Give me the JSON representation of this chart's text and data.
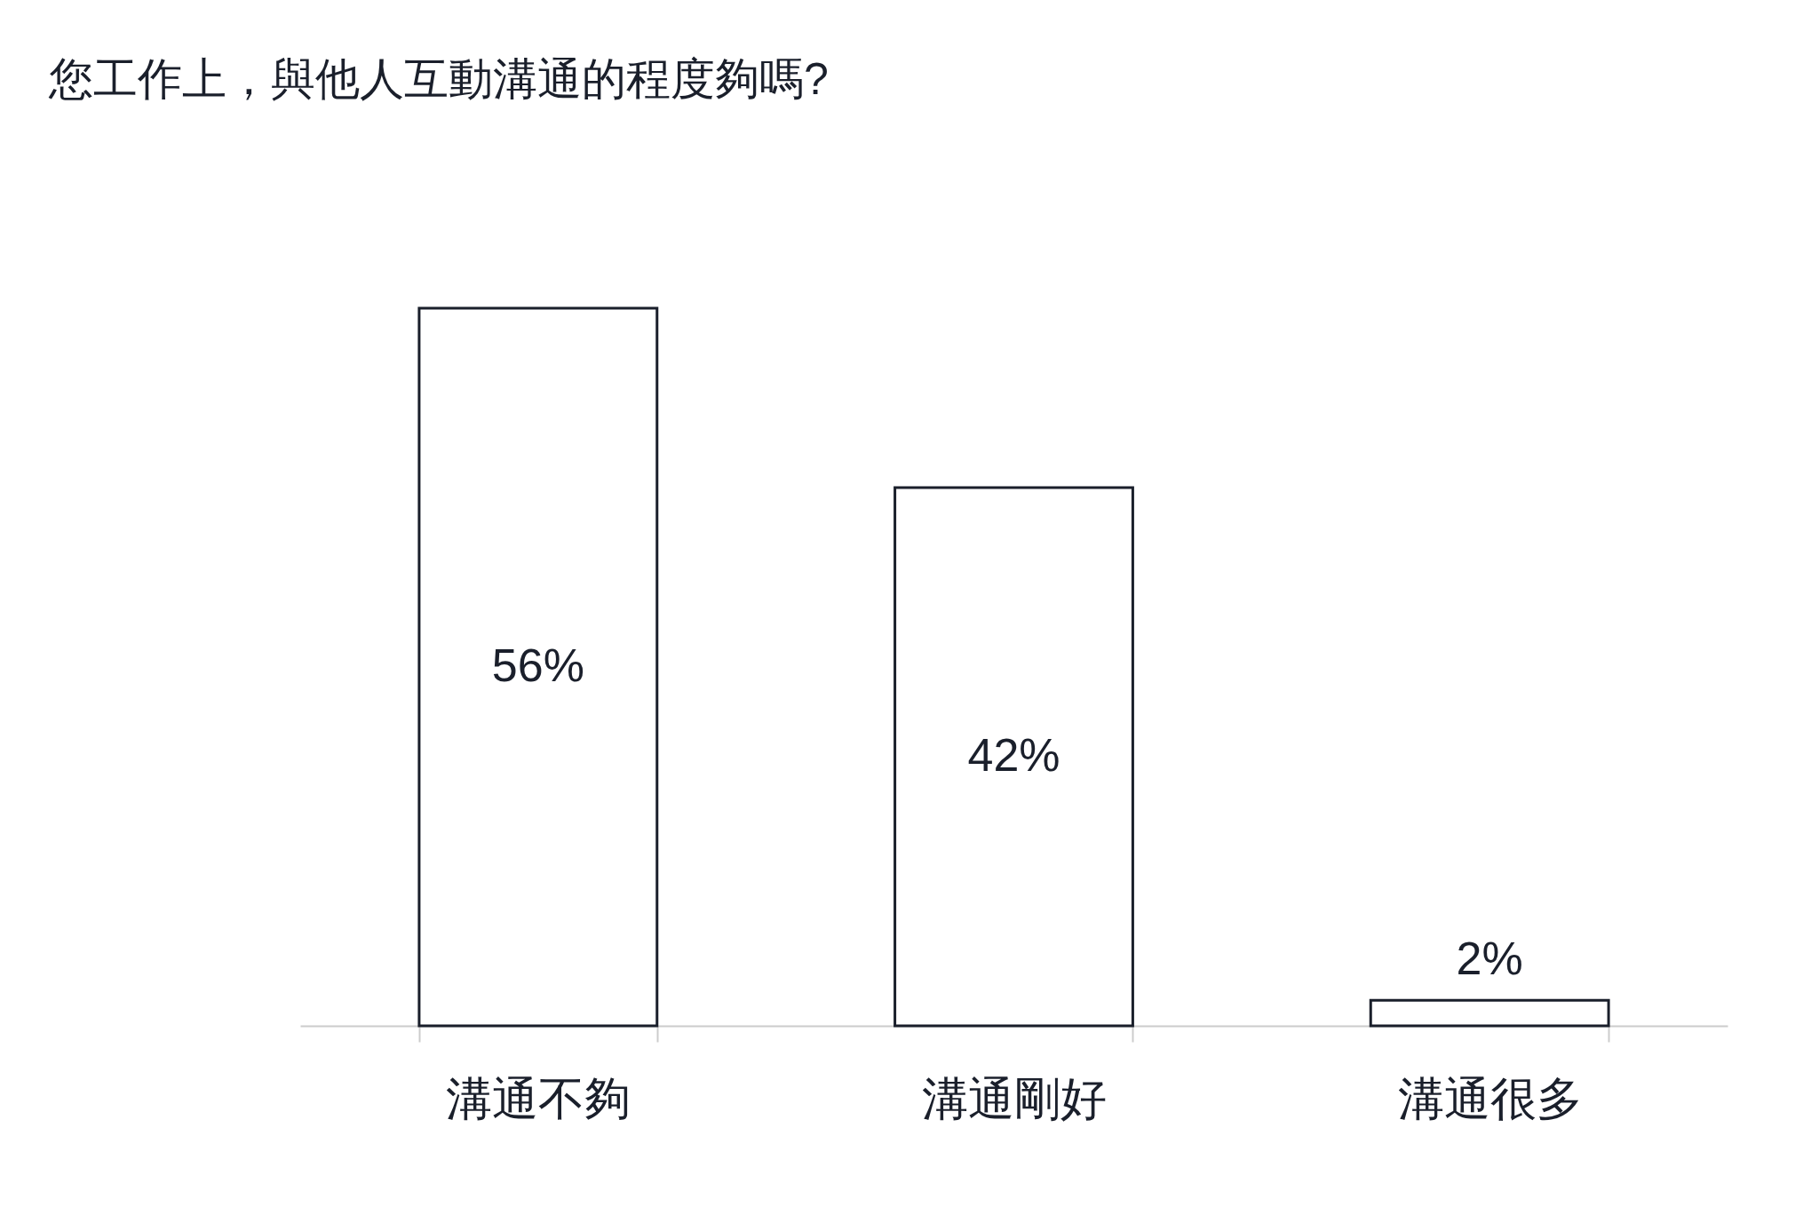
{
  "chart_data": {
    "type": "bar",
    "title": "您工作上，與他人互動溝通的程度夠嗎?",
    "categories": [
      "溝通不夠",
      "溝通剛好",
      "溝通很多"
    ],
    "values": [
      56,
      42,
      2
    ],
    "value_labels": [
      "56%",
      "42%",
      "2%"
    ],
    "color": "#ffffff",
    "tick_labels": "x",
    "grid": false
  }
}
